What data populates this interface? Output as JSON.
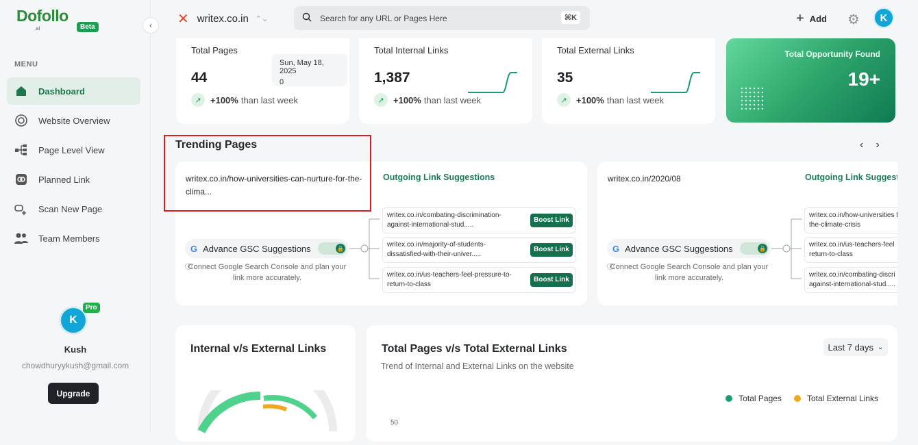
{
  "brand": {
    "name": "Dofollo",
    "suffix": ".ai",
    "badge": "Beta"
  },
  "sidebar": {
    "menu_heading": "MENU",
    "items": [
      {
        "label": "Dashboard",
        "icon": "home-icon",
        "active": true
      },
      {
        "label": "Website Overview",
        "icon": "overview-icon"
      },
      {
        "label": "Page Level View",
        "icon": "hierarchy-icon"
      },
      {
        "label": "Planned Link",
        "icon": "link-icon"
      },
      {
        "label": "Scan New Page",
        "icon": "scan-icon"
      },
      {
        "label": "Team Members",
        "icon": "team-icon"
      }
    ]
  },
  "profile": {
    "initial": "K",
    "badge": "Pro",
    "name": "Kush",
    "email": "chowdhuryykush@gmail.com",
    "upgrade_label": "Upgrade"
  },
  "topbar": {
    "site": "writex.co.in",
    "search_placeholder": "Search for any URL or Pages Here",
    "shortcut": "⌘K",
    "add_label": "Add",
    "avatar_initial": "K"
  },
  "stats": [
    {
      "title": "Total Pages",
      "value": "44",
      "change": "+100%",
      "change_text": "than last week"
    },
    {
      "title": "Total Internal Links",
      "value": "1,387",
      "change": "+100%",
      "change_text": "than last week"
    },
    {
      "title": "Total External Links",
      "value": "35",
      "change": "+100%",
      "change_text": "than last week"
    }
  ],
  "tooltip": {
    "date": "Sun, May 18, 2025",
    "value": "0"
  },
  "opportunity": {
    "title": "Total Opportunity Found",
    "value": "19+"
  },
  "trending": {
    "title": "Trending Pages",
    "cards": [
      {
        "url": "writex.co.in/how-universities-can-nurture-for-the-clima...",
        "suggestions_title": "Outgoing Link Suggestions",
        "gsc_label": "Advance GSC Suggestions",
        "gsc_desc": "Connect Google Search Console and plan your link more accurately.",
        "suggestions": [
          {
            "text": "writex.co.in/combating-discrimination-against-international-stud.....",
            "action": "Boost Link"
          },
          {
            "text": "writex.co.in/majority-of-students-dissatisfied-with-their-univer.....",
            "action": "Boost Link"
          },
          {
            "text": "writex.co.in/us-teachers-feel-pressure-to-return-to-class",
            "action": "Boost Link"
          }
        ]
      },
      {
        "url": "writex.co.in/2020/08",
        "suggestions_title": "Outgoing Link Suggest",
        "gsc_label": "Advance GSC Suggestions",
        "gsc_desc": "Connect Google Search Console and plan your link more accurately.",
        "suggestions": [
          {
            "text": "writex.co.in/how-universities for-the-climate-crisis"
          },
          {
            "text": "writex.co.in/us-teachers-feel return-to-class"
          },
          {
            "text": "writex.co.in/combating-discri against-international-stud....."
          }
        ]
      }
    ]
  },
  "internal_external": {
    "title": "Internal v/s External Links"
  },
  "pages_external": {
    "title": "Total Pages v/s Total External Links",
    "subtitle": "Trend of Internal and External Links on the website",
    "range": "Last 7 days",
    "legend": [
      {
        "name": "Total Pages",
        "color": "#1a9e6e"
      },
      {
        "name": "Total External Links",
        "color": "#f2a81d"
      }
    ],
    "y_tick": "50"
  },
  "colors": {
    "accent": "#1e7a55",
    "highlight_box": "#e01b1b"
  }
}
